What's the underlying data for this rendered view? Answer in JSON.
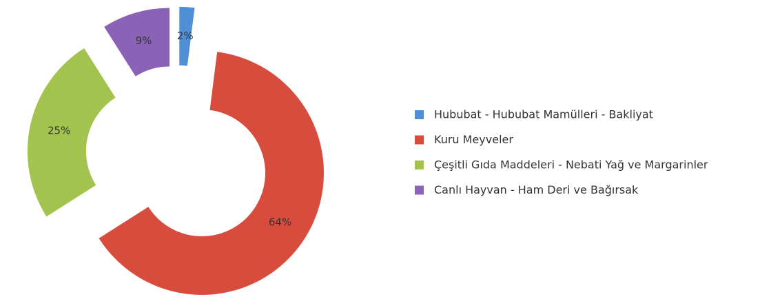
{
  "chart_data": {
    "type": "donut",
    "series": [
      {
        "name": "Hububat - Hububat Mamülleri - Bakliyat",
        "color": "#4f8fd6"
      },
      {
        "name": "Kuru Meyveler",
        "color": "#d84c3e"
      },
      {
        "name": "Çeşitli Gıda Maddeleri - Nebati Yağ ve Margarinler",
        "color": "#a3c34f"
      },
      {
        "name": "Canlı Hayvan - Ham Deri ve Bağırsak",
        "color": "#8a63b6"
      }
    ],
    "values": [
      2,
      64,
      25,
      9
    ],
    "value_labels": [
      "2%",
      "64%",
      "25%",
      "9%"
    ],
    "legend": "right"
  }
}
